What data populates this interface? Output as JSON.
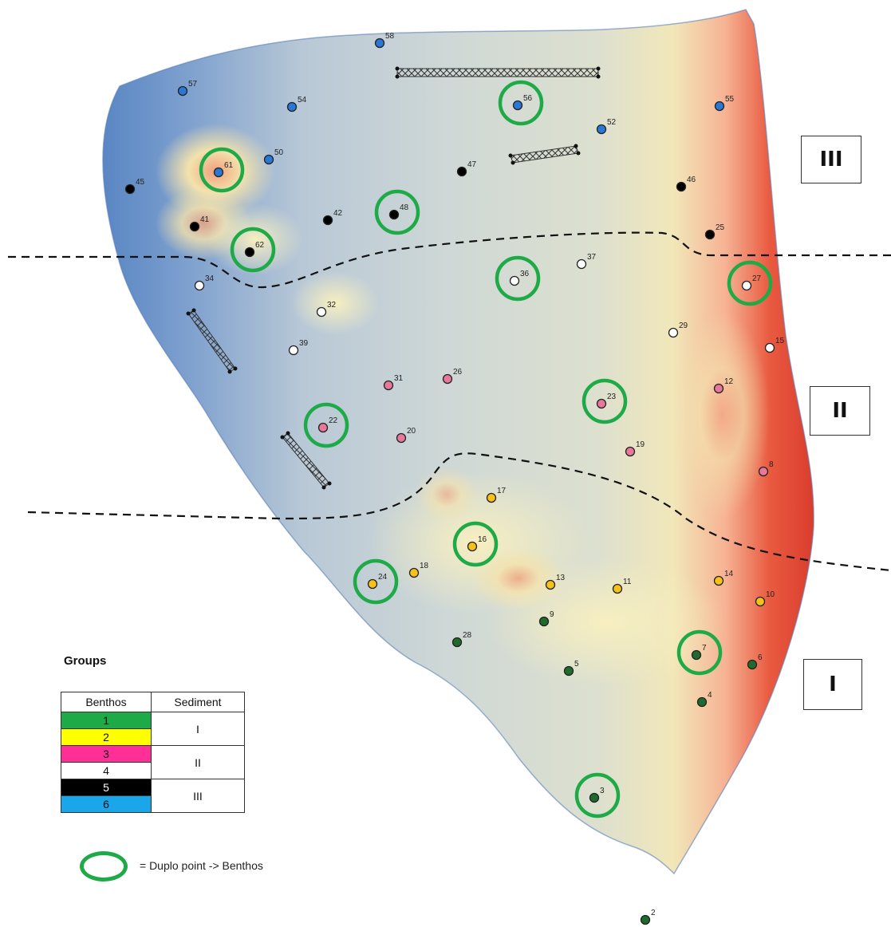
{
  "zones": [
    "III",
    "II",
    "I"
  ],
  "legend": {
    "title": "Groups",
    "header_benthos": "Benthos",
    "header_sediment": "Sediment",
    "benthos_groups": [
      {
        "label": "1",
        "color": "#1faa48"
      },
      {
        "label": "2",
        "color": "#ffff00"
      },
      {
        "label": "3",
        "color": "#ff2f97"
      },
      {
        "label": "4",
        "color": "#ffffff"
      },
      {
        "label": "5",
        "color": "#000000"
      },
      {
        "label": "6",
        "color": "#1aa6e8"
      }
    ],
    "sediment_groups": [
      "I",
      "II",
      "III"
    ],
    "duplo_text": "= Duplo point -> Benthos"
  },
  "point_colors": {
    "1": "#1e6b2c",
    "2": "#f6c21a",
    "3": "#e8789a",
    "4": "#ffffff",
    "5": "#000000",
    "6": "#2a78d6"
  },
  "duplo_color": "#1faa48",
  "points": [
    {
      "id": "58",
      "group": 6,
      "duplo": false
    },
    {
      "id": "57",
      "group": 6,
      "duplo": false
    },
    {
      "id": "54",
      "group": 6,
      "duplo": false
    },
    {
      "id": "56",
      "group": 6,
      "duplo": true
    },
    {
      "id": "52",
      "group": 6,
      "duplo": false
    },
    {
      "id": "55",
      "group": 6,
      "duplo": false
    },
    {
      "id": "50",
      "group": 6,
      "duplo": false
    },
    {
      "id": "61",
      "group": 6,
      "duplo": true
    },
    {
      "id": "45",
      "group": 5,
      "duplo": false
    },
    {
      "id": "47",
      "group": 5,
      "duplo": false
    },
    {
      "id": "46",
      "group": 5,
      "duplo": false
    },
    {
      "id": "41",
      "group": 5,
      "duplo": false
    },
    {
      "id": "42",
      "group": 5,
      "duplo": false
    },
    {
      "id": "48",
      "group": 5,
      "duplo": true
    },
    {
      "id": "25",
      "group": 5,
      "duplo": false
    },
    {
      "id": "62",
      "group": 5,
      "duplo": true
    },
    {
      "id": "34",
      "group": 4,
      "duplo": false
    },
    {
      "id": "36",
      "group": 4,
      "duplo": true
    },
    {
      "id": "37",
      "group": 4,
      "duplo": false
    },
    {
      "id": "27",
      "group": 4,
      "duplo": true
    },
    {
      "id": "32",
      "group": 4,
      "duplo": false
    },
    {
      "id": "29",
      "group": 4,
      "duplo": false
    },
    {
      "id": "39",
      "group": 4,
      "duplo": false
    },
    {
      "id": "15",
      "group": 4,
      "duplo": false
    },
    {
      "id": "31",
      "group": 3,
      "duplo": false
    },
    {
      "id": "26",
      "group": 3,
      "duplo": false
    },
    {
      "id": "12",
      "group": 3,
      "duplo": false
    },
    {
      "id": "23",
      "group": 3,
      "duplo": true
    },
    {
      "id": "22",
      "group": 3,
      "duplo": true
    },
    {
      "id": "20",
      "group": 3,
      "duplo": false
    },
    {
      "id": "19",
      "group": 3,
      "duplo": false
    },
    {
      "id": "8",
      "group": 3,
      "duplo": false
    },
    {
      "id": "17",
      "group": 2,
      "duplo": false
    },
    {
      "id": "16",
      "group": 2,
      "duplo": true
    },
    {
      "id": "18",
      "group": 2,
      "duplo": false
    },
    {
      "id": "24",
      "group": 2,
      "duplo": true
    },
    {
      "id": "13",
      "group": 2,
      "duplo": false
    },
    {
      "id": "11",
      "group": 2,
      "duplo": false
    },
    {
      "id": "14",
      "group": 2,
      "duplo": false
    },
    {
      "id": "10",
      "group": 2,
      "duplo": false
    },
    {
      "id": "9",
      "group": 1,
      "duplo": false
    },
    {
      "id": "28",
      "group": 1,
      "duplo": false
    },
    {
      "id": "7",
      "group": 1,
      "duplo": true
    },
    {
      "id": "6",
      "group": 1,
      "duplo": false
    },
    {
      "id": "5",
      "group": 1,
      "duplo": false
    },
    {
      "id": "4",
      "group": 1,
      "duplo": false
    },
    {
      "id": "3",
      "group": 1,
      "duplo": true
    },
    {
      "id": "2",
      "group": 1,
      "duplo": false
    }
  ]
}
